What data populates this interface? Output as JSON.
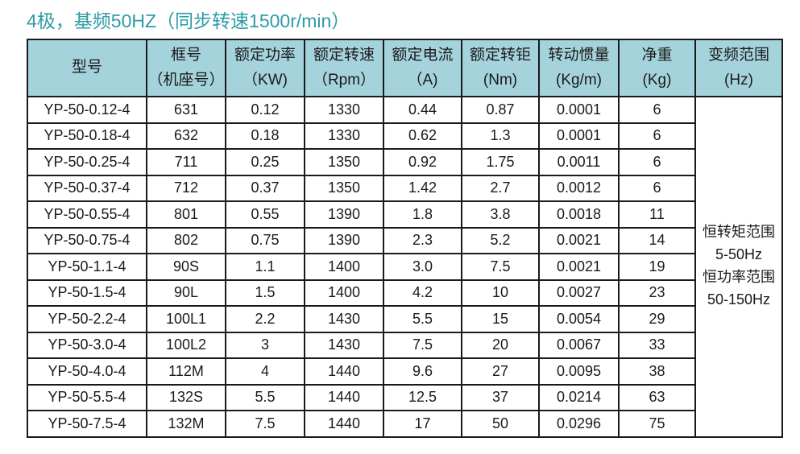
{
  "title": "4极，基频50HZ（同步转速1500r/min）",
  "colors": {
    "accent": "#2E9BA6",
    "header_bg": "#A5D3DC",
    "border": "#1A1A1A",
    "text": "#1A1A1A"
  },
  "table": {
    "columns": [
      {
        "id": "model",
        "line1": "型号",
        "line2": ""
      },
      {
        "id": "frame",
        "line1": "框号",
        "line2": "（机座号）"
      },
      {
        "id": "power",
        "line1": "额定功率",
        "line2": "（KW)"
      },
      {
        "id": "speed",
        "line1": "额定转速",
        "line2": "（Rpm）"
      },
      {
        "id": "current",
        "line1": "额定电流",
        "line2": "（A)"
      },
      {
        "id": "torque",
        "line1": "额定转钜",
        "line2": "(Nm)"
      },
      {
        "id": "inertia",
        "line1": "转动惯量",
        "line2": "(Kg/m)"
      },
      {
        "id": "weight",
        "line1": "净重",
        "line2": "(Kg)"
      },
      {
        "id": "freq",
        "line1": "变频范围",
        "line2": "(Hz)"
      }
    ],
    "rows": [
      [
        "YP-50-0.12-4",
        "631",
        "0.12",
        "1330",
        "0.44",
        "0.87",
        "0.0001",
        "6"
      ],
      [
        "YP-50-0.18-4",
        "632",
        "0.18",
        "1330",
        "0.62",
        "1.3",
        "0.0001",
        "6"
      ],
      [
        "YP-50-0.25-4",
        "711",
        "0.25",
        "1350",
        "0.92",
        "1.75",
        "0.0011",
        "6"
      ],
      [
        "YP-50-0.37-4",
        "712",
        "0.37",
        "1350",
        "1.42",
        "2.7",
        "0.0012",
        "6"
      ],
      [
        "YP-50-0.55-4",
        "801",
        "0.55",
        "1390",
        "1.8",
        "3.8",
        "0.0018",
        "11"
      ],
      [
        "YP-50-0.75-4",
        "802",
        "0.75",
        "1390",
        "2.3",
        "5.2",
        "0.0021",
        "14"
      ],
      [
        "YP-50-1.1-4",
        "90S",
        "1.1",
        "1400",
        "3.0",
        "7.5",
        "0.0021",
        "19"
      ],
      [
        "YP-50-1.5-4",
        "90L",
        "1.5",
        "1400",
        "4.2",
        "10",
        "0.0027",
        "23"
      ],
      [
        "YP-50-2.2-4",
        "100L1",
        "2.2",
        "1430",
        "5.5",
        "15",
        "0.0054",
        "29"
      ],
      [
        "YP-50-3.0-4",
        "100L2",
        "3",
        "1430",
        "7.5",
        "20",
        "0.0067",
        "33"
      ],
      [
        "YP-50-4.0-4",
        "112M",
        "4",
        "1440",
        "9.6",
        "27",
        "0.0095",
        "38"
      ],
      [
        "YP-50-5.5-4",
        "132S",
        "5.5",
        "1440",
        "12.5",
        "37",
        "0.0214",
        "63"
      ],
      [
        "YP-50-7.5-4",
        "132M",
        "7.5",
        "1440",
        "17",
        "50",
        "0.0296",
        "75"
      ]
    ],
    "freq_range_lines": [
      "恒转矩范围",
      "5-50Hz",
      "恒功率范围",
      "50-150Hz"
    ]
  }
}
